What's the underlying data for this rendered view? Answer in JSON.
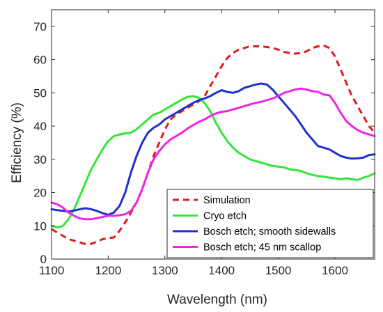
{
  "chart_data": {
    "type": "line",
    "title": "",
    "xlabel": "Wavelength (nm)",
    "ylabel": "Efficiency (%)",
    "xlim": [
      1100,
      1670
    ],
    "ylim": [
      0,
      75
    ],
    "xticks": [
      1100,
      1200,
      1300,
      1400,
      1500,
      1600
    ],
    "yticks": [
      0,
      10,
      20,
      30,
      40,
      50,
      60,
      70
    ],
    "grid": false,
    "legend_position": "bottom-right",
    "series": [
      {
        "name": "Simulation",
        "color": "#e31a1c",
        "dash": "dashed",
        "x": [
          1100,
          1110,
          1120,
          1130,
          1140,
          1150,
          1160,
          1170,
          1180,
          1190,
          1200,
          1210,
          1220,
          1230,
          1240,
          1250,
          1260,
          1270,
          1280,
          1290,
          1300,
          1310,
          1320,
          1330,
          1340,
          1350,
          1360,
          1370,
          1380,
          1390,
          1400,
          1410,
          1420,
          1430,
          1440,
          1450,
          1460,
          1470,
          1480,
          1490,
          1500,
          1510,
          1520,
          1530,
          1540,
          1550,
          1560,
          1570,
          1580,
          1590,
          1600,
          1610,
          1620,
          1630,
          1640,
          1650,
          1660,
          1670
        ],
        "y": [
          9,
          8,
          7,
          6,
          5.5,
          5,
          4.5,
          4.6,
          5.2,
          6,
          6.3,
          6.5,
          8.5,
          11,
          14,
          17,
          21,
          26,
          31,
          35,
          39,
          42,
          43.5,
          44.5,
          45.5,
          46.5,
          47.5,
          49,
          52,
          55,
          58,
          60.5,
          62,
          63,
          63.5,
          64,
          64,
          64,
          63.8,
          63.5,
          63,
          62.3,
          62,
          61.8,
          62,
          62.5,
          63.5,
          64,
          64.3,
          63.5,
          61,
          57,
          53,
          49,
          46,
          43,
          40,
          38
        ]
      },
      {
        "name": "Cryo etch",
        "color": "#33e63a",
        "dash": "solid",
        "x": [
          1100,
          1110,
          1120,
          1130,
          1140,
          1150,
          1160,
          1170,
          1180,
          1190,
          1200,
          1210,
          1220,
          1230,
          1240,
          1250,
          1260,
          1270,
          1280,
          1290,
          1300,
          1310,
          1320,
          1330,
          1340,
          1350,
          1360,
          1370,
          1380,
          1390,
          1400,
          1410,
          1420,
          1430,
          1440,
          1450,
          1460,
          1470,
          1480,
          1490,
          1500,
          1510,
          1520,
          1530,
          1540,
          1550,
          1560,
          1570,
          1580,
          1590,
          1600,
          1610,
          1620,
          1630,
          1640,
          1650,
          1660,
          1670
        ],
        "y": [
          10,
          9.5,
          10,
          12,
          15,
          19,
          23,
          27,
          30,
          33,
          35.5,
          37,
          37.5,
          37.8,
          38,
          39,
          40.5,
          42,
          43.5,
          44,
          45,
          46,
          47,
          48,
          48.8,
          49,
          48.5,
          47,
          44.5,
          41,
          38,
          35.5,
          33.5,
          32,
          31,
          30,
          29.5,
          29,
          28.5,
          28,
          27.8,
          27.6,
          27,
          26.8,
          26.5,
          25.8,
          25.3,
          25,
          24.8,
          24.5,
          24.3,
          24,
          24.3,
          24,
          23.8,
          24.5,
          25,
          25.8
        ]
      },
      {
        "name": "Bosch etch; smooth sidewalls",
        "color": "#1f2fd0",
        "dash": "solid",
        "x": [
          1100,
          1110,
          1120,
          1130,
          1140,
          1150,
          1160,
          1170,
          1180,
          1190,
          1200,
          1210,
          1220,
          1230,
          1240,
          1250,
          1260,
          1270,
          1280,
          1290,
          1300,
          1310,
          1320,
          1330,
          1340,
          1350,
          1360,
          1370,
          1380,
          1390,
          1400,
          1410,
          1420,
          1430,
          1440,
          1450,
          1460,
          1470,
          1480,
          1490,
          1500,
          1510,
          1520,
          1530,
          1540,
          1550,
          1560,
          1570,
          1580,
          1590,
          1600,
          1610,
          1620,
          1630,
          1640,
          1650,
          1660,
          1670
        ],
        "y": [
          15,
          14.7,
          14.5,
          14.3,
          14.6,
          15,
          15.3,
          15,
          14.5,
          13.8,
          13.3,
          14,
          16,
          20,
          26,
          31,
          35,
          38,
          39.5,
          40.5,
          42,
          43,
          44,
          45,
          46,
          47,
          47.8,
          48.3,
          49,
          50,
          50.8,
          50.3,
          50,
          50.5,
          51.5,
          52,
          52.5,
          52.8,
          52.5,
          51,
          49,
          47,
          45,
          43,
          40.5,
          38,
          36,
          34,
          33.5,
          33,
          32,
          31,
          30.5,
          30.2,
          30.3,
          30.5,
          31.3,
          31.5
        ]
      },
      {
        "name": "Bosch etch; 45 nm scallop",
        "color": "#f024e6",
        "dash": "solid",
        "x": [
          1100,
          1110,
          1120,
          1130,
          1140,
          1150,
          1160,
          1170,
          1180,
          1190,
          1200,
          1210,
          1220,
          1230,
          1240,
          1250,
          1260,
          1270,
          1280,
          1290,
          1300,
          1310,
          1320,
          1330,
          1340,
          1350,
          1360,
          1370,
          1380,
          1390,
          1400,
          1410,
          1420,
          1430,
          1440,
          1450,
          1460,
          1470,
          1480,
          1490,
          1500,
          1510,
          1520,
          1530,
          1540,
          1550,
          1560,
          1570,
          1580,
          1590,
          1600,
          1610,
          1620,
          1630,
          1640,
          1650,
          1660,
          1670
        ],
        "y": [
          17,
          16.5,
          15.5,
          14,
          13,
          12.2,
          12,
          12,
          12.3,
          12.7,
          13,
          13,
          13.2,
          13.5,
          14.5,
          17,
          21,
          26,
          30,
          32.5,
          34.5,
          36,
          37,
          38,
          39.3,
          40.3,
          41.3,
          42,
          43,
          43.8,
          44.3,
          44.5,
          45,
          45.5,
          46,
          46.5,
          47,
          47.3,
          47.8,
          48.3,
          49,
          50,
          50.5,
          51,
          51.3,
          51,
          50.5,
          50.3,
          49.5,
          49.3,
          47,
          44,
          41.5,
          40,
          38.8,
          38,
          37.5,
          37
        ]
      }
    ]
  }
}
